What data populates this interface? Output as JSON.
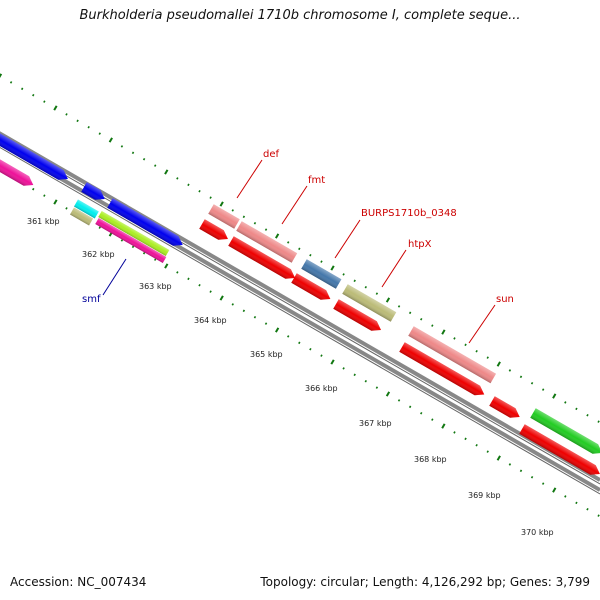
{
  "title": "Burkholderia pseudomallei 1710b chromosome I, complete seque...",
  "footer": {
    "accession": "Accession: NC_007434",
    "topology": "Topology: circular; Length: 4,126,292 bp; Genes: 3,799"
  },
  "scale_labels": [
    "361 kbp",
    "362 kbp",
    "363 kbp",
    "364 kbp",
    "365 kbp",
    "366 kbp",
    "367 kbp",
    "368 kbp",
    "369 kbp",
    "370 kbp"
  ],
  "gene_labels": [
    {
      "name": "def",
      "color": "#cc0000"
    },
    {
      "name": "fmt",
      "color": "#cc0000"
    },
    {
      "name": "BURPS1710b_0348",
      "color": "#cc0000"
    },
    {
      "name": "htpX",
      "color": "#cc0000"
    },
    {
      "name": "sun",
      "color": "#cc0000"
    },
    {
      "name": "smf",
      "color": "#000099"
    }
  ],
  "colors": {
    "blue": "#0000ee",
    "pink": "#ee1199",
    "cyan": "#00eeee",
    "tan": "#bbbb77",
    "lime": "#aaee22",
    "salmon": "#ee8888",
    "red": "#ee0000",
    "steelblue": "#4477aa",
    "green": "#22cc22",
    "tick": "#117711",
    "backbone": "#888888"
  }
}
